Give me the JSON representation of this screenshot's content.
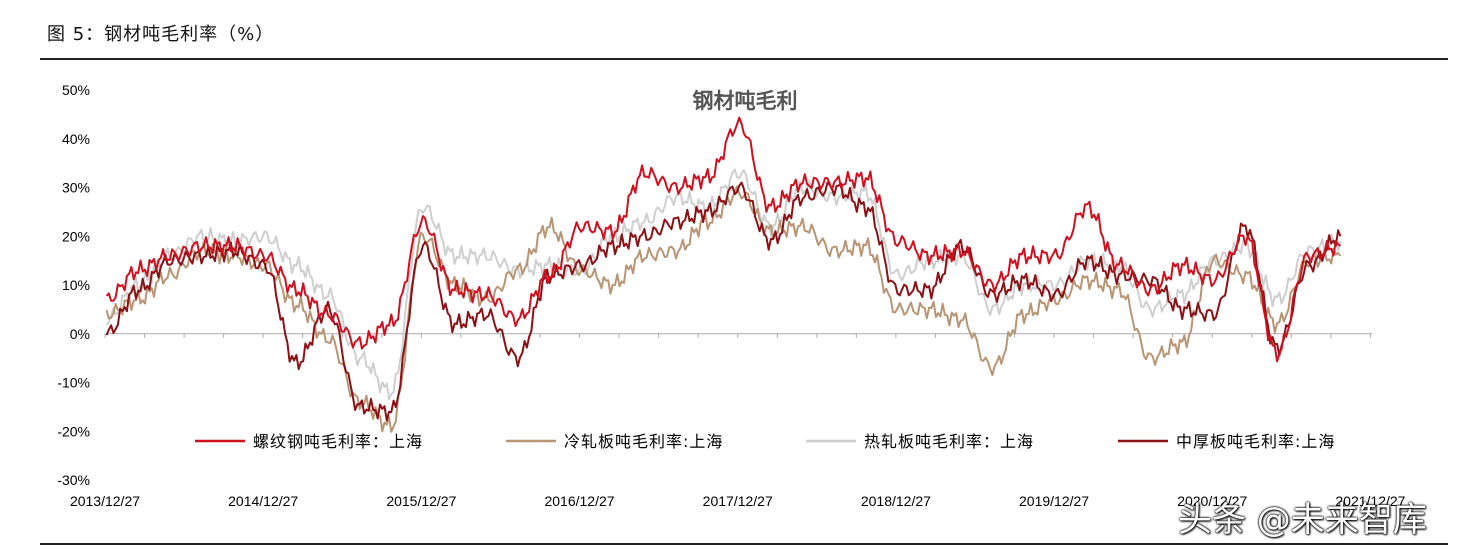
{
  "caption": "图 5：钢材吨毛利率（%）",
  "watermark": "头条 @未来智库",
  "chart_data": {
    "type": "line",
    "title": "钢材吨毛利",
    "xlabel": "",
    "ylabel": "",
    "ylim": [
      -0.3,
      0.5
    ],
    "yticks": [
      -0.3,
      -0.2,
      -0.1,
      0,
      0.1,
      0.2,
      0.3,
      0.4,
      0.5
    ],
    "ytick_labels": [
      "-30%",
      "-20%",
      "-10%",
      "0%",
      "10%",
      "20%",
      "30%",
      "40%",
      "50%"
    ],
    "xlim": [
      2013.99,
      2022.0
    ],
    "xtick_labels": [
      "2013/12/27",
      "2014/12/27",
      "2015/12/27",
      "2016/12/27",
      "2017/12/27",
      "2018/12/27",
      "2019/12/27",
      "2020/12/27",
      "2021/12/27"
    ],
    "xticks": [
      2013.99,
      2014.99,
      2015.99,
      2016.99,
      2017.99,
      2018.99,
      2019.99,
      2020.99,
      2021.99
    ],
    "legend_position": "bottom",
    "x": [
      2014.0,
      2014.2,
      2014.4,
      2014.6,
      2014.8,
      2015.0,
      2015.2,
      2015.4,
      2015.6,
      2015.8,
      2016.0,
      2016.2,
      2016.4,
      2016.6,
      2016.8,
      2017.0,
      2017.2,
      2017.4,
      2017.6,
      2017.8,
      2018.0,
      2018.2,
      2018.4,
      2018.6,
      2018.8,
      2019.0,
      2019.2,
      2019.4,
      2019.6,
      2019.8,
      2020.0,
      2020.2,
      2020.4,
      2020.6,
      2020.8,
      2021.0,
      2021.2,
      2021.4,
      2021.6,
      2021.8
    ],
    "series": [
      {
        "name": "螺纹钢吨毛利率：上海",
        "color": "#d0101f",
        "values": [
          0.07,
          0.13,
          0.16,
          0.18,
          0.18,
          0.16,
          0.09,
          0.04,
          -0.02,
          0.02,
          0.23,
          0.09,
          0.08,
          0.03,
          0.12,
          0.22,
          0.21,
          0.33,
          0.3,
          0.32,
          0.43,
          0.26,
          0.31,
          0.31,
          0.32,
          0.19,
          0.16,
          0.17,
          0.1,
          0.16,
          0.16,
          0.26,
          0.14,
          0.09,
          0.14,
          0.11,
          0.2,
          -0.04,
          0.16,
          0.18
        ]
      },
      {
        "name": "冷轧板吨毛利率:上海",
        "color": "#b89575",
        "values": [
          0.04,
          0.07,
          0.12,
          0.17,
          0.16,
          0.14,
          0.06,
          -0.01,
          -0.14,
          -0.19,
          0.2,
          0.1,
          0.07,
          0.13,
          0.22,
          0.13,
          0.1,
          0.16,
          0.17,
          0.23,
          0.29,
          0.21,
          0.22,
          0.17,
          0.18,
          0.05,
          0.05,
          0.03,
          -0.07,
          0.04,
          0.07,
          0.11,
          0.09,
          -0.05,
          -0.02,
          0.15,
          0.12,
          0.02,
          0.15,
          0.16
        ]
      },
      {
        "name": "热轧板吨毛利率：上海",
        "color": "#cfcfcf",
        "values": [
          0.03,
          0.1,
          0.16,
          0.2,
          0.19,
          0.2,
          0.14,
          0.08,
          -0.05,
          -0.12,
          0.26,
          0.16,
          0.16,
          0.13,
          0.14,
          0.13,
          0.2,
          0.23,
          0.28,
          0.26,
          0.33,
          0.22,
          0.3,
          0.28,
          0.29,
          0.12,
          0.15,
          0.16,
          0.05,
          0.1,
          0.1,
          0.15,
          0.14,
          0.05,
          0.08,
          0.15,
          0.18,
          0.07,
          0.17,
          0.19
        ]
      },
      {
        "name": "中厚板吨毛利率:上海",
        "color": "#8b1116",
        "values": [
          0.0,
          0.09,
          0.15,
          0.16,
          0.17,
          0.14,
          -0.06,
          0.05,
          -0.15,
          -0.16,
          0.18,
          0.02,
          0.04,
          -0.05,
          0.12,
          0.14,
          0.18,
          0.2,
          0.23,
          0.25,
          0.3,
          0.19,
          0.28,
          0.3,
          0.26,
          0.09,
          0.09,
          0.18,
          0.08,
          0.11,
          0.08,
          0.15,
          0.12,
          0.11,
          0.05,
          0.04,
          0.22,
          -0.03,
          0.14,
          0.2
        ]
      }
    ]
  }
}
